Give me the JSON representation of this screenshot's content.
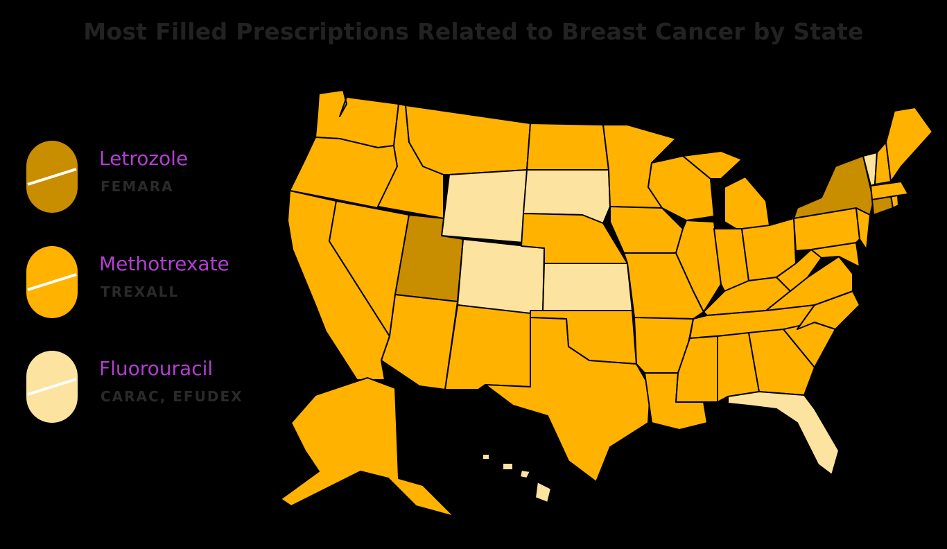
{
  "title": "Most Filled Prescriptions Related to Breast Cancer by State",
  "colors": {
    "background": "#000000",
    "title": "#222222",
    "drug_label": "#b23fd1",
    "brand_label": "#2a2a2a",
    "letrozole": "#c98d00",
    "methotrexate": "#ffb300",
    "fluorouracil": "#fde3a0"
  },
  "legend": [
    {
      "drug": "Letrozole",
      "brand": "FEMARA",
      "color_key": "letrozole"
    },
    {
      "drug": "Methotrexate",
      "brand": "TREXALL",
      "color_key": "methotrexate"
    },
    {
      "drug": "Fluorouracil",
      "brand": "CARAC, EFUDEX",
      "color_key": "fluorouracil"
    }
  ],
  "state_data": [
    {
      "state": "WA",
      "drug": "Methotrexate"
    },
    {
      "state": "OR",
      "drug": "Methotrexate"
    },
    {
      "state": "CA",
      "drug": "Methotrexate"
    },
    {
      "state": "ID",
      "drug": "Methotrexate"
    },
    {
      "state": "NV",
      "drug": "Methotrexate"
    },
    {
      "state": "MT",
      "drug": "Methotrexate"
    },
    {
      "state": "WY",
      "drug": "Fluorouracil"
    },
    {
      "state": "UT",
      "drug": "Letrozole"
    },
    {
      "state": "AZ",
      "drug": "Methotrexate"
    },
    {
      "state": "CO",
      "drug": "Fluorouracil"
    },
    {
      "state": "NM",
      "drug": "Methotrexate"
    },
    {
      "state": "ND",
      "drug": "Methotrexate"
    },
    {
      "state": "SD",
      "drug": "Fluorouracil"
    },
    {
      "state": "NE",
      "drug": "Methotrexate"
    },
    {
      "state": "KS",
      "drug": "Fluorouracil"
    },
    {
      "state": "OK",
      "drug": "Methotrexate"
    },
    {
      "state": "TX",
      "drug": "Methotrexate"
    },
    {
      "state": "MN",
      "drug": "Methotrexate"
    },
    {
      "state": "IA",
      "drug": "Methotrexate"
    },
    {
      "state": "MO",
      "drug": "Methotrexate"
    },
    {
      "state": "AR",
      "drug": "Methotrexate"
    },
    {
      "state": "LA",
      "drug": "Methotrexate"
    },
    {
      "state": "WI",
      "drug": "Methotrexate"
    },
    {
      "state": "IL",
      "drug": "Methotrexate"
    },
    {
      "state": "MI",
      "drug": "Methotrexate"
    },
    {
      "state": "IN",
      "drug": "Methotrexate"
    },
    {
      "state": "OH",
      "drug": "Methotrexate"
    },
    {
      "state": "KY",
      "drug": "Methotrexate"
    },
    {
      "state": "TN",
      "drug": "Methotrexate"
    },
    {
      "state": "MS",
      "drug": "Methotrexate"
    },
    {
      "state": "AL",
      "drug": "Methotrexate"
    },
    {
      "state": "GA",
      "drug": "Methotrexate"
    },
    {
      "state": "FL",
      "drug": "Fluorouracil"
    },
    {
      "state": "SC",
      "drug": "Methotrexate"
    },
    {
      "state": "NC",
      "drug": "Methotrexate"
    },
    {
      "state": "VA",
      "drug": "Methotrexate"
    },
    {
      "state": "WV",
      "drug": "Methotrexate"
    },
    {
      "state": "MD",
      "drug": "Methotrexate"
    },
    {
      "state": "DE",
      "drug": "Methotrexate"
    },
    {
      "state": "PA",
      "drug": "Methotrexate"
    },
    {
      "state": "NJ",
      "drug": "Methotrexate"
    },
    {
      "state": "NY",
      "drug": "Letrozole"
    },
    {
      "state": "CT",
      "drug": "Letrozole"
    },
    {
      "state": "RI",
      "drug": "Methotrexate"
    },
    {
      "state": "MA",
      "drug": "Methotrexate"
    },
    {
      "state": "VT",
      "drug": "Fluorouracil"
    },
    {
      "state": "NH",
      "drug": "Methotrexate"
    },
    {
      "state": "ME",
      "drug": "Methotrexate"
    },
    {
      "state": "AK",
      "drug": "Methotrexate"
    },
    {
      "state": "HI",
      "drug": "Fluorouracil"
    }
  ]
}
